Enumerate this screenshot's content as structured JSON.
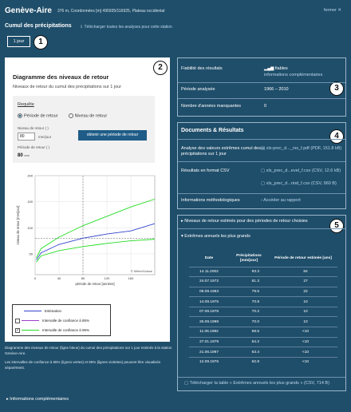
{
  "header": {
    "station": "Genève-Aire",
    "coords": "376 m, Coordonnées [m] 495935/116925, Plateau occidental",
    "close": "fermer ✕",
    "subtitle": "Cumul des précipitations",
    "download_all": "Télécharger toutes les analyses pour cette station",
    "tab": "1 jour"
  },
  "markers": [
    "1",
    "2",
    "3",
    "4",
    "5"
  ],
  "diagram": {
    "title": "Diagramme des niveaux de retour",
    "subtitle": "Niveaux de retour du cumul des précipitations sur 1 jour",
    "request": {
      "title": "Requête",
      "radio_period": "Période de retour",
      "radio_level": "Niveau de retour",
      "level_label": "Niveau de retour (                  )",
      "level_value": "80",
      "level_unit": "mm/jour",
      "button": "obtenir une période de retour",
      "result_label": "Période de retour (          )",
      "result_value": "80",
      "result_unit": "ans"
    },
    "copyright": "© MétéoSuisse",
    "legend": {
      "estimation": "Estimation",
      "ci85": "Intervalle de confiance à 85%",
      "ci95": "Intervalle de confiance à 95%"
    },
    "caption1": "Diagramme des niveaux de retour (ligne bleue) du cumul des précipitations sur 1 jour estimés à la station Genève-Aire.",
    "caption2": "Les intervalles de confiance à 95% (lignes vertes) et 85% (lignes violettes) peuvent être visualisés séparément."
  },
  "chart_data": {
    "type": "line",
    "xlabel": "période de retour [années]",
    "ylabel": "niveau de retour [mm/jour]",
    "xlim": [
      0,
      200
    ],
    "ylim": [
      10,
      200
    ],
    "x_ticks": [
      0,
      40,
      80,
      120,
      160
    ],
    "y_ticks": [
      50,
      100,
      150,
      200
    ],
    "x_tick_labels": [
      "0",
      "40",
      "80",
      "120",
      "160"
    ],
    "y_tick_labels": [
      "50",
      "100",
      "150",
      "200"
    ],
    "query_x": 80,
    "query_y": 80,
    "series": [
      {
        "x": [
          2,
          10,
          40,
          80,
          120,
          160,
          200
        ],
        "values": [
          38,
          52,
          68,
          80,
          88,
          94,
          108
        ]
      },
      {
        "x": [
          2,
          10,
          40,
          80,
          120,
          160,
          200
        ],
        "values": [
          42,
          60,
          82,
          104,
          122,
          140,
          155
        ]
      },
      {
        "x": [
          2,
          10,
          40,
          80,
          120,
          160,
          200
        ],
        "values": [
          34,
          46,
          56,
          64,
          70,
          75,
          78
        ]
      }
    ],
    "colors": [
      "#3344cc",
      "#22dd22",
      "#22dd22"
    ]
  },
  "reliability": {
    "rows": [
      {
        "label": "Fiabilité des résultats",
        "value": "fiables",
        "link": "informations complémentaires"
      },
      {
        "label": "Période analysée",
        "value": "1966 – 2010"
      },
      {
        "label": "Nombre d'années manquantes",
        "value": "0"
      }
    ]
  },
  "documents": {
    "title": "Documents & Résultats",
    "rows": [
      {
        "label": "Analyse des valeurs extrêmes cumul des précipitations sur 1 jour",
        "value": "xls-proc_d..._rxs_f.pdf (PDF, 151.8 kB)"
      },
      {
        "label": "Résultats en format CSV",
        "value": "xls_prec_d...evel_f.csv (CSV, 12.6 kB)",
        "value2": "xls_prec_d...riod_f.csv (CSV, 960 B)"
      },
      {
        "label": "Informations méthodologiques",
        "value": "Accéder au rapport"
      }
    ]
  },
  "extremes": {
    "toggle1": "Niveaux de retour estimés pour des périodes de retour choisies",
    "toggle2": "Extrêmes annuels les plus grands",
    "columns": [
      "Date",
      "Précipitations [mm/jour]",
      "Période de retour estimée [ans]"
    ],
    "rows": [
      [
        "14.11.2002",
        "93.3",
        "84"
      ],
      [
        "24.07.1972",
        "81.3",
        "27"
      ],
      [
        "09.09.1983",
        "79.5",
        "22"
      ],
      [
        "14.09.1975",
        "70.8",
        "10"
      ],
      [
        "07.08.1978",
        "70.2",
        "10"
      ],
      [
        "25.09.1999",
        "70.0",
        "10"
      ],
      [
        "11.06.1982",
        "68.5",
        "<10"
      ],
      [
        "27.01.1979",
        "64.2",
        "<10"
      ],
      [
        "21.06.1997",
        "63.4",
        "<10"
      ],
      [
        "12.09.1976",
        "62.8",
        "<10"
      ]
    ],
    "download": "Télécharger la table « Extrêmes annuels les plus grands » (CSV, 714 B)"
  },
  "footer": {
    "more_info": "Informations complémentaires"
  }
}
